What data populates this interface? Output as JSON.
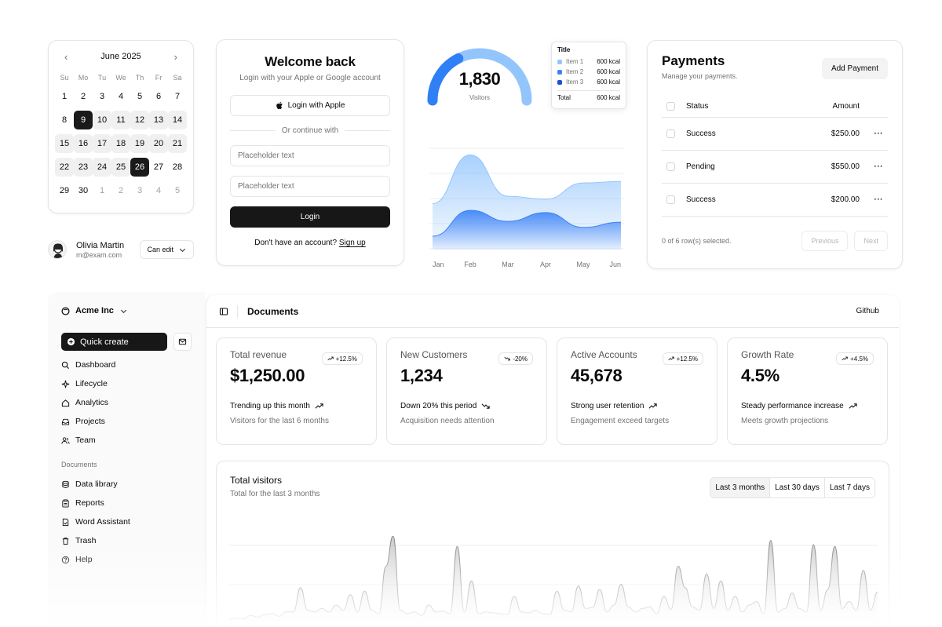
{
  "calendar": {
    "month": "June 2025",
    "weekdays": [
      "Su",
      "Mo",
      "Tu",
      "We",
      "Th",
      "Fr",
      "Sa"
    ],
    "weeks": [
      [
        "1",
        "2",
        "3",
        "4",
        "5",
        "6",
        "7"
      ],
      [
        "8",
        "9",
        "10",
        "11",
        "12",
        "13",
        "14"
      ],
      [
        "15",
        "16",
        "17",
        "18",
        "19",
        "20",
        "21"
      ],
      [
        "22",
        "23",
        "24",
        "25",
        "26",
        "27",
        "28"
      ],
      [
        "29",
        "30",
        "1",
        "2",
        "3",
        "4",
        "5"
      ]
    ],
    "selected_start": "9",
    "selected_end": "26"
  },
  "user": {
    "name": "Olivia Martin",
    "email": "m@exam.com",
    "permission": "Can edit"
  },
  "login": {
    "title": "Welcome back",
    "subtitle": "Login with your Apple or Google account",
    "apple_button": "Login with Apple",
    "divider": "Or continue with",
    "input1_placeholder": "Placeholder text",
    "input2_placeholder": "Placeholder text",
    "login_button": "Login",
    "signup_prompt": "Don't have an account?",
    "signup_link": "Sign up"
  },
  "gauge": {
    "value": "1,830",
    "label": "Visitors",
    "fill_fraction": 0.35,
    "colors": {
      "fill": "#2f7ff5",
      "track": "#93c5fd"
    }
  },
  "tooltip": {
    "title": "Title",
    "items": [
      {
        "name": "Item 1",
        "value": "600 kcal",
        "color": "#93c5fd"
      },
      {
        "name": "Item 2",
        "value": "600 kcal",
        "color": "#3b82f6"
      },
      {
        "name": "Item 3",
        "value": "600 kcal",
        "color": "#1d4ed8"
      }
    ],
    "total_label": "Total",
    "total_value": "600 kcal"
  },
  "chart_data": {
    "type": "area",
    "categories": [
      "Jan",
      "Feb",
      "Mar",
      "Apr",
      "May",
      "Jun"
    ],
    "series": [
      {
        "values": [
          62,
          128,
          72,
          68,
          90,
          92
        ],
        "color": "#93c5fd"
      },
      {
        "values": [
          18,
          53,
          38,
          50,
          30,
          37
        ],
        "color": "#3b82f6"
      }
    ],
    "ylim": [
      0,
      140
    ],
    "grid": true
  },
  "payments": {
    "title": "Payments",
    "subtitle": "Manage your payments.",
    "add_button": "Add Payment",
    "columns": {
      "status": "Status",
      "amount": "Amount"
    },
    "rows": [
      {
        "status": "Success",
        "amount": "$250.00"
      },
      {
        "status": "Pending",
        "amount": "$550.00"
      },
      {
        "status": "Success",
        "amount": "$200.00"
      }
    ],
    "selection": "0 of 6 row(s) selected.",
    "prev": "Previous",
    "next": "Next"
  },
  "sidebar": {
    "org": "Acme Inc",
    "quick_create": "Quick create",
    "nav": [
      {
        "label": "Dashboard",
        "icon": "search-icon"
      },
      {
        "label": "Lifecycle",
        "icon": "sparkle-icon"
      },
      {
        "label": "Analytics",
        "icon": "home-icon"
      },
      {
        "label": "Projects",
        "icon": "inbox-icon"
      },
      {
        "label": "Team",
        "icon": "users-icon"
      }
    ],
    "section": "Documents",
    "docs": [
      {
        "label": "Data library",
        "icon": "database-icon"
      },
      {
        "label": "Reports",
        "icon": "clipboard-icon"
      },
      {
        "label": "Word Assistant",
        "icon": "file-icon"
      },
      {
        "label": "Trash",
        "icon": "trash-icon"
      },
      {
        "label": "Help",
        "icon": "help-icon"
      }
    ]
  },
  "main": {
    "title": "Documents",
    "github": "Github",
    "kpis": [
      {
        "label": "Total revenue",
        "value": "$1,250.00",
        "badge": "+12.5%",
        "trend": "up",
        "line1": "Trending up this month",
        "line2": "Visitors for the last 6 months"
      },
      {
        "label": "New Customers",
        "value": "1,234",
        "badge": "-20%",
        "trend": "down",
        "line1": "Down 20% this period",
        "line2": "Acquisition needs attention"
      },
      {
        "label": "Active Accounts",
        "value": "45,678",
        "badge": "+12.5%",
        "trend": "up",
        "line1": "Strong user retention",
        "line2": "Engagement exceed targets"
      },
      {
        "label": "Growth Rate",
        "value": "4.5%",
        "badge": "+4.5%",
        "trend": "up",
        "line1": "Steady performance increase",
        "line2": "Meets growth projections"
      }
    ],
    "visitors": {
      "title": "Total visitors",
      "subtitle": "Total for the last 3 months",
      "ranges": [
        "Last 3 months",
        "Last 30 days",
        "Last 7 days"
      ],
      "selected_range": "Last 3 months"
    }
  },
  "visitors_chart_data": {
    "type": "area",
    "ylim": [
      0,
      100
    ],
    "grid": true,
    "color": "#a3a3a3",
    "values": [
      3,
      5,
      4,
      8,
      6,
      9,
      10,
      7,
      12,
      12,
      40,
      14,
      12,
      16,
      12,
      20,
      14,
      32,
      12,
      36,
      14,
      10,
      65,
      100,
      14,
      10,
      12,
      8,
      20,
      12,
      13,
      10,
      88,
      12,
      48,
      10,
      12,
      11,
      10,
      9,
      30,
      12,
      11,
      14,
      10,
      9,
      36,
      14,
      12,
      42,
      16,
      17,
      38,
      12,
      20,
      44,
      18,
      12,
      16,
      18,
      10,
      30,
      15,
      65,
      40,
      18,
      14,
      56,
      16,
      48,
      14,
      30,
      12,
      20,
      24,
      10,
      95,
      12,
      16,
      34,
      16,
      12,
      90,
      14,
      38,
      88,
      16,
      24,
      14,
      60,
      14,
      35
    ]
  }
}
